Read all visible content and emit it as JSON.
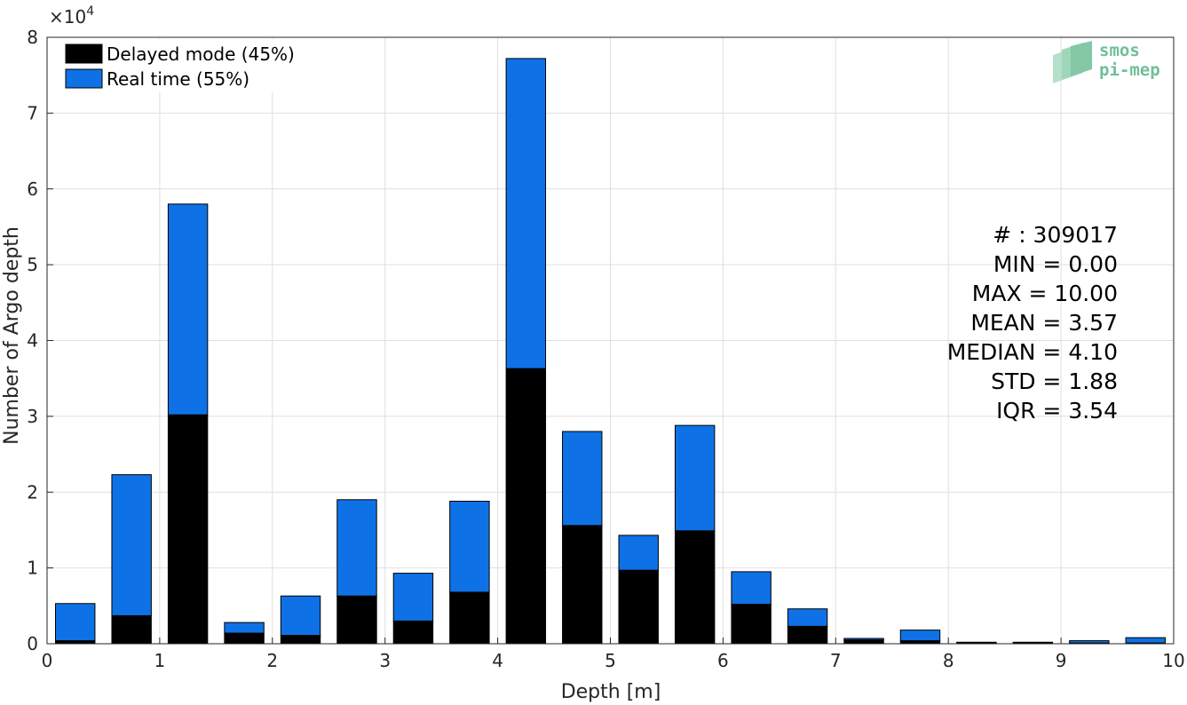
{
  "chart_data": {
    "type": "bar",
    "stacked": true,
    "xlabel": "Depth [m]",
    "ylabel": "Number of Argo depth",
    "y_multiplier_label": "×10",
    "y_multiplier_exponent": "4",
    "xlim": [
      0,
      10
    ],
    "ylim": [
      0,
      80000
    ],
    "xticks": [
      "0",
      "1",
      "2",
      "3",
      "4",
      "5",
      "6",
      "7",
      "8",
      "9",
      "10"
    ],
    "yticks": [
      "0",
      "1",
      "2",
      "3",
      "4",
      "5",
      "6",
      "7",
      "8"
    ],
    "grid": true,
    "legend_position": "top-left",
    "bin_centers": [
      0.25,
      0.75,
      1.25,
      1.75,
      2.25,
      2.75,
      3.25,
      3.75,
      4.25,
      4.75,
      5.25,
      5.75,
      6.25,
      6.75,
      7.25,
      7.75,
      8.25,
      8.75,
      9.25,
      9.75
    ],
    "bar_width": 0.35,
    "series": [
      {
        "name": "Delayed mode (45%)",
        "color": "#000000",
        "values": [
          400,
          3700,
          30200,
          1400,
          1100,
          6300,
          3000,
          6800,
          36300,
          15600,
          9700,
          14900,
          5200,
          2300,
          500,
          400,
          100,
          100,
          100,
          100
        ]
      },
      {
        "name": "Real time (55%)",
        "color": "#0e72e6",
        "values": [
          4900,
          18600,
          27800,
          1400,
          5200,
          12700,
          6300,
          12000,
          40900,
          12400,
          4600,
          13900,
          4300,
          2300,
          200,
          1400,
          100,
          100,
          300,
          700
        ]
      }
    ],
    "annotations": [
      "# : 309017",
      "MIN = 0.00",
      "MAX =  10.00",
      "MEAN = 3.57",
      "MEDIAN = 4.10",
      "STD = 1.88",
      "IQR = 3.54"
    ],
    "logo": {
      "line1": "smos",
      "line2": "pi-mep",
      "color": "#6fbf97"
    }
  }
}
